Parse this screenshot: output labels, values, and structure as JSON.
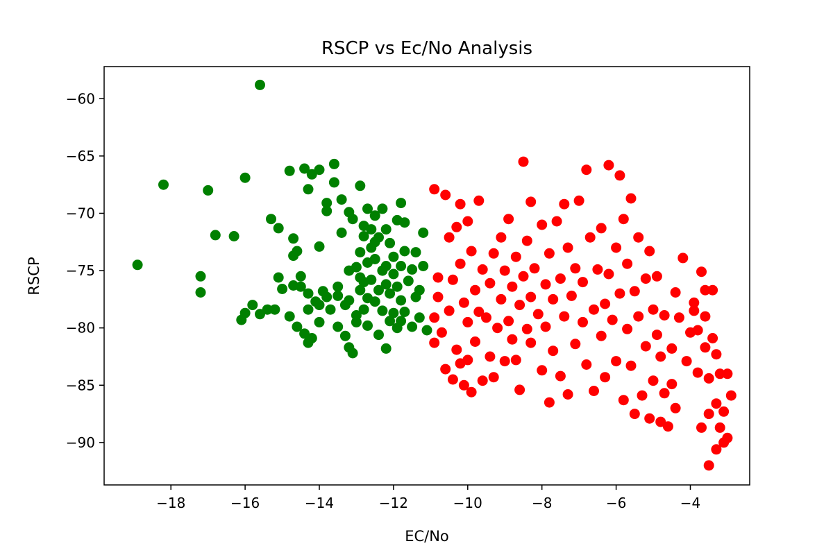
{
  "chart_data": {
    "type": "scatter",
    "title": "RSCP vs Ec/No Analysis",
    "xlabel": "EC/No",
    "ylabel": "RSCP",
    "xlim": [
      -19.8,
      -2.4
    ],
    "ylim": [
      -93.7,
      -57.2
    ],
    "xticks": [
      -18,
      -16,
      -14,
      -12,
      -10,
      -8,
      -6,
      -4
    ],
    "yticks": [
      -60,
      -65,
      -70,
      -75,
      -80,
      -85,
      -90
    ],
    "grid": false,
    "legend": "none",
    "series": [
      {
        "color": "#008000",
        "points": [
          [
            -15.6,
            -58.8
          ],
          [
            -18.9,
            -74.5
          ],
          [
            -18.2,
            -67.5
          ],
          [
            -17.2,
            -75.5
          ],
          [
            -17.2,
            -76.9
          ],
          [
            -17.0,
            -68.0
          ],
          [
            -16.8,
            -71.9
          ],
          [
            -16.3,
            -72.0
          ],
          [
            -16.1,
            -79.3
          ],
          [
            -16.0,
            -78.7
          ],
          [
            -16.0,
            -66.9
          ],
          [
            -15.8,
            -78.0
          ],
          [
            -15.6,
            -78.8
          ],
          [
            -15.4,
            -78.4
          ],
          [
            -15.3,
            -70.5
          ],
          [
            -15.2,
            -78.4
          ],
          [
            -15.1,
            -71.3
          ],
          [
            -15.1,
            -75.6
          ],
          [
            -15.0,
            -76.6
          ],
          [
            -14.8,
            -79.0
          ],
          [
            -14.8,
            -66.3
          ],
          [
            -14.7,
            -72.2
          ],
          [
            -14.7,
            -73.7
          ],
          [
            -14.7,
            -76.3
          ],
          [
            -14.6,
            -79.9
          ],
          [
            -14.6,
            -73.3
          ],
          [
            -14.5,
            -75.5
          ],
          [
            -14.5,
            -76.4
          ],
          [
            -14.4,
            -66.1
          ],
          [
            -14.4,
            -80.5
          ],
          [
            -14.3,
            -81.3
          ],
          [
            -14.3,
            -77.0
          ],
          [
            -14.3,
            -67.9
          ],
          [
            -14.3,
            -78.4
          ],
          [
            -14.2,
            -80.9
          ],
          [
            -14.2,
            -66.6
          ],
          [
            -14.1,
            -77.7
          ],
          [
            -14.0,
            -79.5
          ],
          [
            -14.0,
            -78.0
          ],
          [
            -14.0,
            -72.9
          ],
          [
            -14.0,
            -66.2
          ],
          [
            -13.9,
            -76.8
          ],
          [
            -13.8,
            -77.3
          ],
          [
            -13.8,
            -69.1
          ],
          [
            -13.8,
            -69.8
          ],
          [
            -13.7,
            -78.4
          ],
          [
            -13.6,
            -67.3
          ],
          [
            -13.6,
            -65.7
          ],
          [
            -13.5,
            -76.4
          ],
          [
            -13.5,
            -77.2
          ],
          [
            -13.5,
            -79.9
          ],
          [
            -13.4,
            -68.8
          ],
          [
            -13.4,
            -71.7
          ],
          [
            -13.3,
            -78.0
          ],
          [
            -13.3,
            -80.7
          ],
          [
            -13.2,
            -77.6
          ],
          [
            -13.2,
            -81.7
          ],
          [
            -13.2,
            -75.0
          ],
          [
            -13.2,
            -69.9
          ],
          [
            -13.1,
            -70.5
          ],
          [
            -13.1,
            -82.2
          ],
          [
            -13.0,
            -74.7
          ],
          [
            -13.0,
            -78.9
          ],
          [
            -13.0,
            -79.5
          ],
          [
            -12.9,
            -75.6
          ],
          [
            -12.9,
            -76.7
          ],
          [
            -12.9,
            -67.6
          ],
          [
            -12.9,
            -73.4
          ],
          [
            -12.8,
            -71.1
          ],
          [
            -12.8,
            -72.0
          ],
          [
            -12.8,
            -76.0
          ],
          [
            -12.8,
            -78.4
          ],
          [
            -12.7,
            -69.6
          ],
          [
            -12.7,
            -74.3
          ],
          [
            -12.7,
            -79.8
          ],
          [
            -12.7,
            -77.4
          ],
          [
            -12.6,
            -71.4
          ],
          [
            -12.6,
            -73.0
          ],
          [
            -12.6,
            -75.8
          ],
          [
            -12.5,
            -70.2
          ],
          [
            -12.5,
            -77.7
          ],
          [
            -12.5,
            -74.0
          ],
          [
            -12.5,
            -72.5
          ],
          [
            -12.4,
            -80.6
          ],
          [
            -12.4,
            -76.7
          ],
          [
            -12.4,
            -72.1
          ],
          [
            -12.3,
            -69.6
          ],
          [
            -12.3,
            -75.0
          ],
          [
            -12.3,
            -78.5
          ],
          [
            -12.2,
            -74.6
          ],
          [
            -12.2,
            -71.4
          ],
          [
            -12.2,
            -81.8
          ],
          [
            -12.2,
            -76.2
          ],
          [
            -12.1,
            -72.6
          ],
          [
            -12.1,
            -79.4
          ],
          [
            -12.1,
            -77.0
          ],
          [
            -12.0,
            -75.3
          ],
          [
            -12.0,
            -73.8
          ],
          [
            -12.0,
            -78.7
          ],
          [
            -11.9,
            -70.6
          ],
          [
            -11.9,
            -76.4
          ],
          [
            -11.9,
            -80.0
          ],
          [
            -11.8,
            -69.1
          ],
          [
            -11.8,
            -74.6
          ],
          [
            -11.8,
            -77.6
          ],
          [
            -11.8,
            -79.4
          ],
          [
            -11.7,
            -70.8
          ],
          [
            -11.7,
            -73.3
          ],
          [
            -11.7,
            -78.6
          ],
          [
            -11.6,
            -75.9
          ],
          [
            -11.5,
            -79.9
          ],
          [
            -11.5,
            -74.9
          ],
          [
            -11.4,
            -77.3
          ],
          [
            -11.4,
            -73.4
          ],
          [
            -11.3,
            -79.1
          ],
          [
            -11.3,
            -76.7
          ],
          [
            -11.2,
            -71.7
          ],
          [
            -11.2,
            -74.6
          ],
          [
            -11.1,
            -80.2
          ]
        ]
      },
      {
        "color": "#ff0000",
        "points": [
          [
            -10.9,
            -67.9
          ],
          [
            -10.9,
            -81.3
          ],
          [
            -10.9,
            -79.1
          ],
          [
            -10.8,
            -75.6
          ],
          [
            -10.8,
            -77.3
          ],
          [
            -10.7,
            -80.4
          ],
          [
            -10.6,
            -83.6
          ],
          [
            -10.6,
            -68.4
          ],
          [
            -10.5,
            -72.1
          ],
          [
            -10.5,
            -78.5
          ],
          [
            -10.4,
            -84.5
          ],
          [
            -10.4,
            -75.8
          ],
          [
            -10.3,
            -71.2
          ],
          [
            -10.3,
            -81.9
          ],
          [
            -10.2,
            -69.2
          ],
          [
            -10.2,
            -74.4
          ],
          [
            -10.2,
            -83.1
          ],
          [
            -10.1,
            -77.8
          ],
          [
            -10.1,
            -85.0
          ],
          [
            -10.0,
            -70.7
          ],
          [
            -10.0,
            -79.5
          ],
          [
            -10.0,
            -82.8
          ],
          [
            -9.9,
            -73.3
          ],
          [
            -9.9,
            -85.6
          ],
          [
            -9.8,
            -76.7
          ],
          [
            -9.8,
            -81.2
          ],
          [
            -9.7,
            -68.9
          ],
          [
            -9.7,
            -78.6
          ],
          [
            -9.6,
            -74.9
          ],
          [
            -9.6,
            -84.6
          ],
          [
            -9.5,
            -79.1
          ],
          [
            -9.4,
            -82.5
          ],
          [
            -9.4,
            -76.1
          ],
          [
            -9.3,
            -73.5
          ],
          [
            -9.3,
            -84.3
          ],
          [
            -9.2,
            -80.0
          ],
          [
            -9.1,
            -77.5
          ],
          [
            -9.1,
            -72.1
          ],
          [
            -9.0,
            -82.9
          ],
          [
            -9.0,
            -75.0
          ],
          [
            -8.9,
            -79.4
          ],
          [
            -8.9,
            -70.5
          ],
          [
            -8.8,
            -76.4
          ],
          [
            -8.8,
            -81.0
          ],
          [
            -8.7,
            -73.8
          ],
          [
            -8.7,
            -82.8
          ],
          [
            -8.6,
            -78.0
          ],
          [
            -8.6,
            -85.4
          ],
          [
            -8.5,
            -65.5
          ],
          [
            -8.5,
            -75.5
          ],
          [
            -8.4,
            -80.1
          ],
          [
            -8.4,
            -72.4
          ],
          [
            -8.3,
            -77.3
          ],
          [
            -8.3,
            -81.3
          ],
          [
            -8.3,
            -69.0
          ],
          [
            -8.2,
            -74.8
          ],
          [
            -8.1,
            -78.8
          ],
          [
            -8.0,
            -83.7
          ],
          [
            -8.0,
            -71.0
          ],
          [
            -7.9,
            -76.2
          ],
          [
            -7.9,
            -79.9
          ],
          [
            -7.8,
            -86.5
          ],
          [
            -7.8,
            -73.5
          ],
          [
            -7.7,
            -77.5
          ],
          [
            -7.7,
            -82.0
          ],
          [
            -7.6,
            -70.7
          ],
          [
            -7.5,
            -75.7
          ],
          [
            -7.5,
            -84.2
          ],
          [
            -7.4,
            -79.0
          ],
          [
            -7.4,
            -69.2
          ],
          [
            -7.3,
            -73.0
          ],
          [
            -7.3,
            -85.8
          ],
          [
            -7.2,
            -77.2
          ],
          [
            -7.1,
            -81.4
          ],
          [
            -7.1,
            -74.8
          ],
          [
            -7.0,
            -68.9
          ],
          [
            -6.9,
            -79.5
          ],
          [
            -6.9,
            -76.0
          ],
          [
            -6.8,
            -66.2
          ],
          [
            -6.8,
            -83.2
          ],
          [
            -6.7,
            -72.1
          ],
          [
            -6.6,
            -78.4
          ],
          [
            -6.6,
            -85.5
          ],
          [
            -6.5,
            -74.9
          ],
          [
            -6.4,
            -80.7
          ],
          [
            -6.4,
            -71.3
          ],
          [
            -6.3,
            -77.9
          ],
          [
            -6.3,
            -84.3
          ],
          [
            -6.2,
            -65.8
          ],
          [
            -6.2,
            -75.3
          ],
          [
            -6.1,
            -79.3
          ],
          [
            -6.0,
            -73.0
          ],
          [
            -6.0,
            -82.9
          ],
          [
            -5.9,
            -66.7
          ],
          [
            -5.9,
            -77.0
          ],
          [
            -5.8,
            -86.3
          ],
          [
            -5.8,
            -70.5
          ],
          [
            -5.7,
            -80.1
          ],
          [
            -5.7,
            -74.4
          ],
          [
            -5.6,
            -68.7
          ],
          [
            -5.6,
            -83.3
          ],
          [
            -5.5,
            -76.8
          ],
          [
            -5.5,
            -87.5
          ],
          [
            -5.4,
            -72.1
          ],
          [
            -5.4,
            -79.0
          ],
          [
            -5.3,
            -85.9
          ],
          [
            -5.2,
            -75.7
          ],
          [
            -5.2,
            -81.6
          ],
          [
            -5.1,
            -73.3
          ],
          [
            -5.1,
            -87.9
          ],
          [
            -5.0,
            -78.4
          ],
          [
            -5.0,
            -84.6
          ],
          [
            -4.9,
            -80.6
          ],
          [
            -4.9,
            -75.5
          ],
          [
            -4.8,
            -88.2
          ],
          [
            -4.8,
            -82.5
          ],
          [
            -4.7,
            -78.9
          ],
          [
            -4.7,
            -85.7
          ],
          [
            -4.6,
            -88.6
          ],
          [
            -4.5,
            -81.8
          ],
          [
            -4.5,
            -84.9
          ],
          [
            -4.4,
            -76.9
          ],
          [
            -4.4,
            -87.0
          ],
          [
            -4.3,
            -79.1
          ],
          [
            -4.2,
            -73.9
          ],
          [
            -4.1,
            -82.9
          ],
          [
            -4.0,
            -80.4
          ],
          [
            -3.9,
            -77.8
          ],
          [
            -3.9,
            -78.5
          ],
          [
            -3.8,
            -83.9
          ],
          [
            -3.8,
            -80.2
          ],
          [
            -3.7,
            -75.1
          ],
          [
            -3.7,
            -88.7
          ],
          [
            -3.6,
            -81.7
          ],
          [
            -3.6,
            -79.0
          ],
          [
            -3.6,
            -76.7
          ],
          [
            -3.5,
            -92.0
          ],
          [
            -3.5,
            -87.5
          ],
          [
            -3.5,
            -84.4
          ],
          [
            -3.4,
            -80.9
          ],
          [
            -3.4,
            -76.7
          ],
          [
            -3.3,
            -90.6
          ],
          [
            -3.3,
            -86.6
          ],
          [
            -3.3,
            -82.3
          ],
          [
            -3.2,
            -88.7
          ],
          [
            -3.2,
            -84.0
          ],
          [
            -3.1,
            -90.0
          ],
          [
            -3.1,
            -87.3
          ],
          [
            -3.0,
            -84.0
          ],
          [
            -3.0,
            -89.6
          ],
          [
            -2.9,
            -85.9
          ]
        ]
      }
    ]
  }
}
